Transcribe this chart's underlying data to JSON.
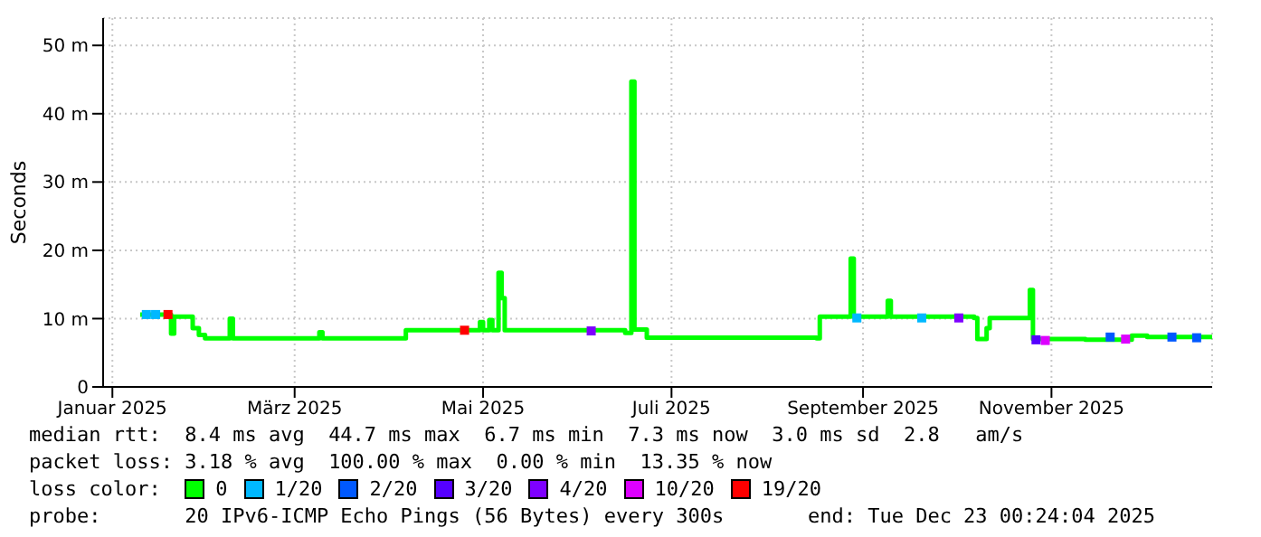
{
  "chart_data": {
    "type": "step",
    "ylabel": "Seconds",
    "legend_title": "loss color:",
    "legend": "bottom",
    "grid": true,
    "xlim": [
      "2024-12-29",
      "2025-12-23T00:24"
    ],
    "xticks": [
      {
        "value": "2025-01-01",
        "label": "Januar 2025"
      },
      {
        "value": "2025-03-01",
        "label": "März 2025"
      },
      {
        "value": "2025-05-01",
        "label": "Mai 2025"
      },
      {
        "value": "2025-07-01",
        "label": "Juli 2025"
      },
      {
        "value": "2025-09-01",
        "label": "September 2025"
      },
      {
        "value": "2025-11-01",
        "label": "November 2025"
      }
    ],
    "ylim": [
      0,
      54
    ],
    "yticks": [
      0,
      {
        "value": 10,
        "label": "10 m"
      },
      {
        "value": 20,
        "label": "20 m"
      },
      {
        "value": 30,
        "label": "30 m"
      },
      {
        "value": 40,
        "label": "40 m"
      },
      {
        "value": 50,
        "label": "50 m"
      }
    ],
    "series": [
      {
        "name": "0",
        "color": "#00ff00",
        "x": [
          "2025-01-10",
          "2025-01-19",
          "2025-01-20",
          "2025-01-21",
          "2025-01-26",
          "2025-01-27",
          "2025-01-29",
          "2025-01-31",
          "2025-02-07",
          "2025-02-08",
          "2025-02-09",
          "2025-03-08",
          "2025-03-09",
          "2025-03-10",
          "2025-04-05",
          "2025-04-06",
          "2025-04-29",
          "2025-04-30",
          "2025-05-01",
          "2025-05-03",
          "2025-05-04",
          "2025-05-06",
          "2025-05-07",
          "2025-05-08",
          "2025-06-15",
          "2025-06-16",
          "2025-06-18",
          "2025-06-19",
          "2025-06-22",
          "2025-06-23",
          "2025-08-17",
          "2025-08-18",
          "2025-08-27",
          "2025-08-28",
          "2025-08-29",
          "2025-09-08",
          "2025-09-09",
          "2025-09-10",
          "2025-10-07",
          "2025-10-08",
          "2025-10-11",
          "2025-10-12",
          "2025-10-24",
          "2025-10-25",
          "2025-10-26",
          "2025-11-12",
          "2025-11-27",
          "2025-12-02",
          "2025-12-23"
        ],
        "values": [
          10.6,
          10.6,
          7.8,
          10.3,
          10.3,
          8.6,
          7.6,
          7.1,
          7.1,
          10.0,
          7.1,
          7.1,
          8.0,
          7.1,
          7.1,
          8.3,
          8.3,
          9.5,
          8.3,
          9.8,
          8.3,
          16.7,
          13.0,
          8.3,
          8.3,
          7.9,
          44.7,
          8.4,
          8.4,
          7.2,
          7.1,
          10.3,
          10.3,
          18.8,
          10.3,
          10.3,
          12.6,
          10.3,
          10.1,
          7.0,
          8.6,
          10.1,
          10.1,
          14.2,
          7.0,
          6.9,
          7.5,
          7.3,
          7.3
        ]
      },
      {
        "name": "1/20",
        "color": "#00b8ff",
        "type": "scatter",
        "x": [
          "2025-01-12",
          "2025-01-15",
          "2025-08-30",
          "2025-09-20"
        ],
        "values": [
          10.6,
          10.6,
          10.1,
          10.1
        ]
      },
      {
        "name": "2/20",
        "color": "#0059ff",
        "type": "scatter",
        "x": [
          "2025-11-20",
          "2025-12-10",
          "2025-12-18"
        ],
        "values": [
          7.3,
          7.3,
          7.2
        ]
      },
      {
        "name": "3/20",
        "color": "#5500ff",
        "type": "scatter",
        "x": [
          "2025-10-27"
        ],
        "values": [
          6.9
        ]
      },
      {
        "name": "4/20",
        "color": "#7e00ff",
        "type": "scatter",
        "x": [
          "2025-06-05",
          "2025-10-02"
        ],
        "values": [
          8.2,
          10.1
        ]
      },
      {
        "name": "10/20",
        "color": "#dd00ff",
        "type": "scatter",
        "x": [
          "2025-10-30",
          "2025-11-25"
        ],
        "values": [
          6.8,
          7.0
        ]
      },
      {
        "name": "19/20",
        "color": "#ff0000",
        "type": "scatter",
        "x": [
          "2025-01-19",
          "2025-04-25"
        ],
        "values": [
          10.6,
          8.3
        ]
      }
    ],
    "annotations": [
      "median rtt:  8.4 ms avg  44.7 ms max  6.7 ms min  7.3 ms now  3.0 ms sd  2.8   am/s",
      "packet loss: 3.18 % avg  100.00 % max  0.00 % min  13.35 % now",
      "probe:       20 IPv6-ICMP Echo Pings (56 Bytes) every 300s       end: Tue Dec 23 00:24:04 2025"
    ]
  }
}
